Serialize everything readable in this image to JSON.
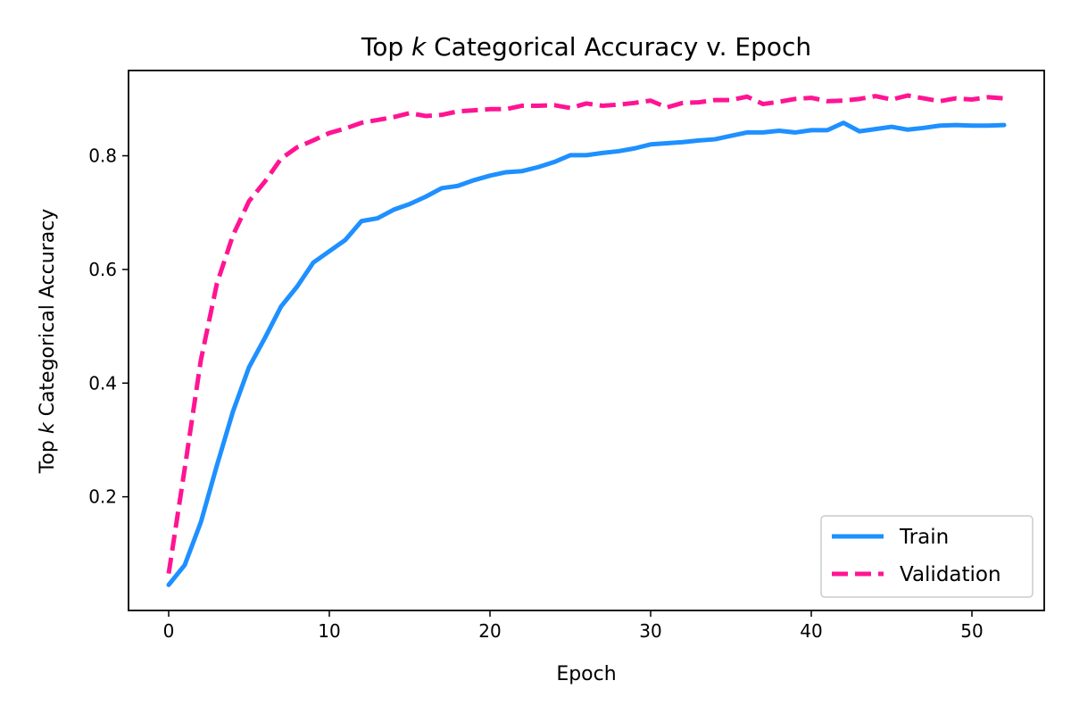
{
  "chart_data": {
    "type": "line",
    "title": {
      "pre": "Top ",
      "italic": "k",
      "post": " Categorical Accuracy v. Epoch"
    },
    "xlabel": "Epoch",
    "ylabel": {
      "pre": "Top ",
      "italic": "k",
      "post": " Categorical Accuracy"
    },
    "xlim": [
      -2.5,
      54.5
    ],
    "ylim": [
      0.0,
      0.95
    ],
    "xticks": [
      0,
      10,
      20,
      30,
      40,
      50
    ],
    "yticks": [
      0.2,
      0.4,
      0.6,
      0.8
    ],
    "xtick_labels": [
      "0",
      "10",
      "20",
      "30",
      "40",
      "50"
    ],
    "ytick_labels": [
      "0.2",
      "0.4",
      "0.6",
      "0.8"
    ],
    "grid": false,
    "legend_position": "bottom-right",
    "x": [
      0,
      1,
      2,
      3,
      4,
      5,
      6,
      7,
      8,
      9,
      10,
      11,
      12,
      13,
      14,
      15,
      16,
      17,
      18,
      19,
      20,
      21,
      22,
      23,
      24,
      25,
      26,
      27,
      28,
      29,
      30,
      31,
      32,
      33,
      34,
      35,
      36,
      37,
      38,
      39,
      40,
      41,
      42,
      43,
      44,
      45,
      46,
      47,
      48,
      49,
      50,
      51,
      52
    ],
    "series": [
      {
        "name": "Train",
        "color": "#1e90ff",
        "style": "solid",
        "values": [
          0.045,
          0.08,
          0.155,
          0.255,
          0.35,
          0.428,
          0.48,
          0.535,
          0.57,
          0.612,
          0.632,
          0.652,
          0.685,
          0.69,
          0.705,
          0.715,
          0.728,
          0.743,
          0.747,
          0.757,
          0.765,
          0.771,
          0.773,
          0.78,
          0.789,
          0.801,
          0.801,
          0.805,
          0.808,
          0.813,
          0.82,
          0.822,
          0.824,
          0.827,
          0.829,
          0.835,
          0.841,
          0.841,
          0.844,
          0.841,
          0.845,
          0.845,
          0.858,
          0.843,
          0.847,
          0.851,
          0.846,
          0.849,
          0.853,
          0.854,
          0.853,
          0.853,
          0.854
        ]
      },
      {
        "name": "Validation",
        "color": "#ff1493",
        "style": "dashed",
        "values": [
          0.065,
          0.25,
          0.44,
          0.575,
          0.66,
          0.72,
          0.755,
          0.795,
          0.815,
          0.827,
          0.84,
          0.848,
          0.858,
          0.863,
          0.868,
          0.875,
          0.87,
          0.872,
          0.878,
          0.88,
          0.882,
          0.882,
          0.888,
          0.888,
          0.889,
          0.884,
          0.892,
          0.888,
          0.89,
          0.893,
          0.897,
          0.885,
          0.893,
          0.894,
          0.898,
          0.898,
          0.904,
          0.891,
          0.895,
          0.9,
          0.902,
          0.896,
          0.897,
          0.9,
          0.905,
          0.899,
          0.906,
          0.901,
          0.896,
          0.901,
          0.899,
          0.903,
          0.901
        ]
      }
    ]
  }
}
